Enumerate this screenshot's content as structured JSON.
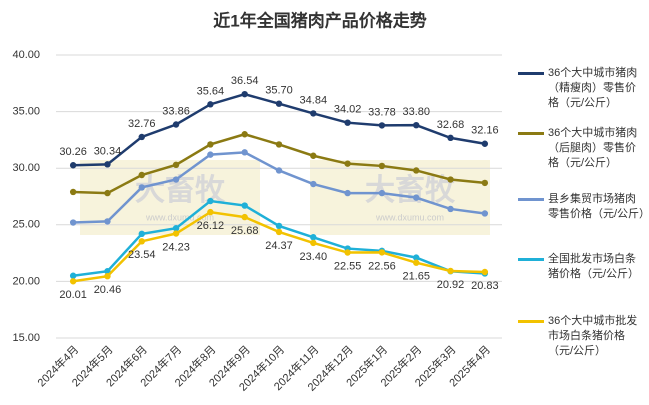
{
  "chart_data": {
    "type": "line",
    "title": "近1年全国猪肉产品价格走势",
    "categories": [
      "2024年4月",
      "2024年5月",
      "2024年6月",
      "2024年7月",
      "2024年8月",
      "2024年9月",
      "2024年10月",
      "2024年11月",
      "2024年12月",
      "2025年1月",
      "2025年2月",
      "2025年3月",
      "2025年4月"
    ],
    "series": [
      {
        "name": "36个大中城市猪肉（精瘦肉）零售价格（元/公斤）",
        "color": "#1f3c6e",
        "values": [
          30.26,
          30.34,
          32.76,
          33.86,
          35.64,
          36.54,
          35.7,
          34.84,
          34.02,
          33.78,
          33.8,
          32.68,
          32.16
        ],
        "value_labels": [
          "30.26",
          "30.34",
          "32.76",
          "33.86",
          "35.64",
          "36.54",
          "35.70",
          "34.84",
          "34.02",
          "33.78",
          "33.80",
          "32.68",
          "32.16"
        ]
      },
      {
        "name": "36个大中城市猪肉（后腿肉）零售价格（元/公斤）",
        "color": "#8b7a13",
        "values": [
          27.9,
          27.8,
          29.4,
          30.3,
          32.1,
          33.0,
          32.1,
          31.1,
          30.4,
          30.2,
          29.8,
          29.0,
          28.7
        ]
      },
      {
        "name": "县乡集贸市场猪肉零售价格（元/公斤）",
        "color": "#7094cf",
        "values": [
          25.2,
          25.3,
          28.3,
          29.0,
          31.2,
          31.4,
          29.8,
          28.6,
          27.8,
          27.8,
          27.4,
          26.4,
          26.0
        ]
      },
      {
        "name": "全国批发市场白条猪价格（元/公斤）",
        "color": "#1fb0d8",
        "values": [
          20.5,
          20.9,
          24.2,
          24.7,
          27.1,
          26.7,
          24.9,
          23.9,
          22.9,
          22.7,
          22.1,
          20.9,
          20.7
        ]
      },
      {
        "name": "36个大中城市批发市场白条猪价格（元/公斤）",
        "color": "#f2c200",
        "values": [
          20.01,
          20.46,
          23.54,
          24.23,
          26.12,
          25.68,
          24.37,
          23.4,
          22.55,
          22.56,
          21.65,
          20.92,
          20.83
        ],
        "value_labels": [
          "20.01",
          "20.46",
          "23.54",
          "24.23",
          "26.12",
          "25.68",
          "24.37",
          "23.40",
          "22.55",
          "22.56",
          "21.65",
          "20.92",
          "20.83"
        ]
      }
    ],
    "ylim": [
      15,
      40
    ],
    "yticks": [
      {
        "value": 15,
        "label": "15.00"
      },
      {
        "value": 20,
        "label": "20.00"
      },
      {
        "value": 25,
        "label": "25.00"
      },
      {
        "value": 30,
        "label": "30.00"
      },
      {
        "value": 35,
        "label": "35.00"
      },
      {
        "value": 40,
        "label": "40.00"
      }
    ],
    "grid": true,
    "watermark": [
      "大畜牧",
      "www.dxumu.com"
    ]
  }
}
